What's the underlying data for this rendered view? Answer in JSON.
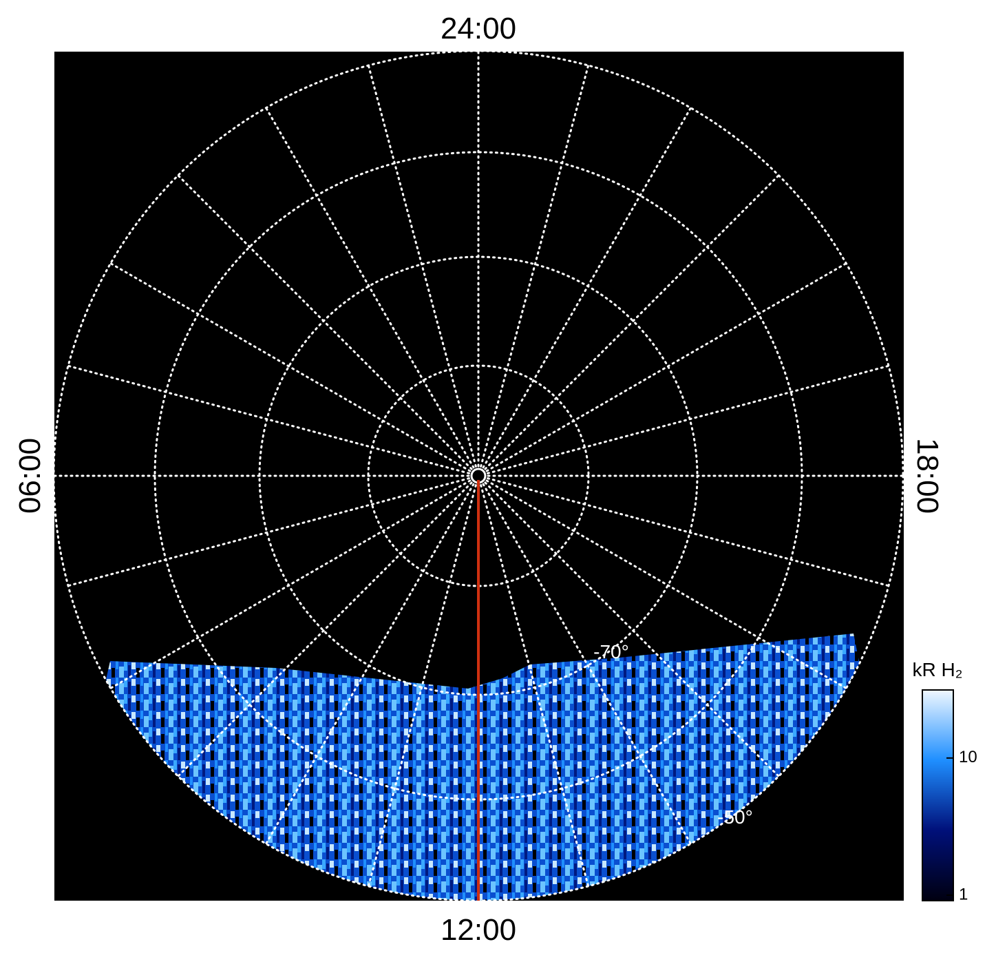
{
  "chart_data": {
    "type": "polar-map",
    "time_labels": {
      "top": "24:00",
      "right": "18:00",
      "bottom": "12:00",
      "left": "06:00"
    },
    "latitude_labels": [
      "-70°",
      "-50°"
    ],
    "colorbar": {
      "label": "kR H₂",
      "log": true,
      "lim": [
        1,
        30
      ],
      "ticks": [
        1,
        10
      ],
      "colors": [
        "#000010",
        "#00107a",
        "#1f8fff",
        "#f0f8ff"
      ]
    }
  }
}
